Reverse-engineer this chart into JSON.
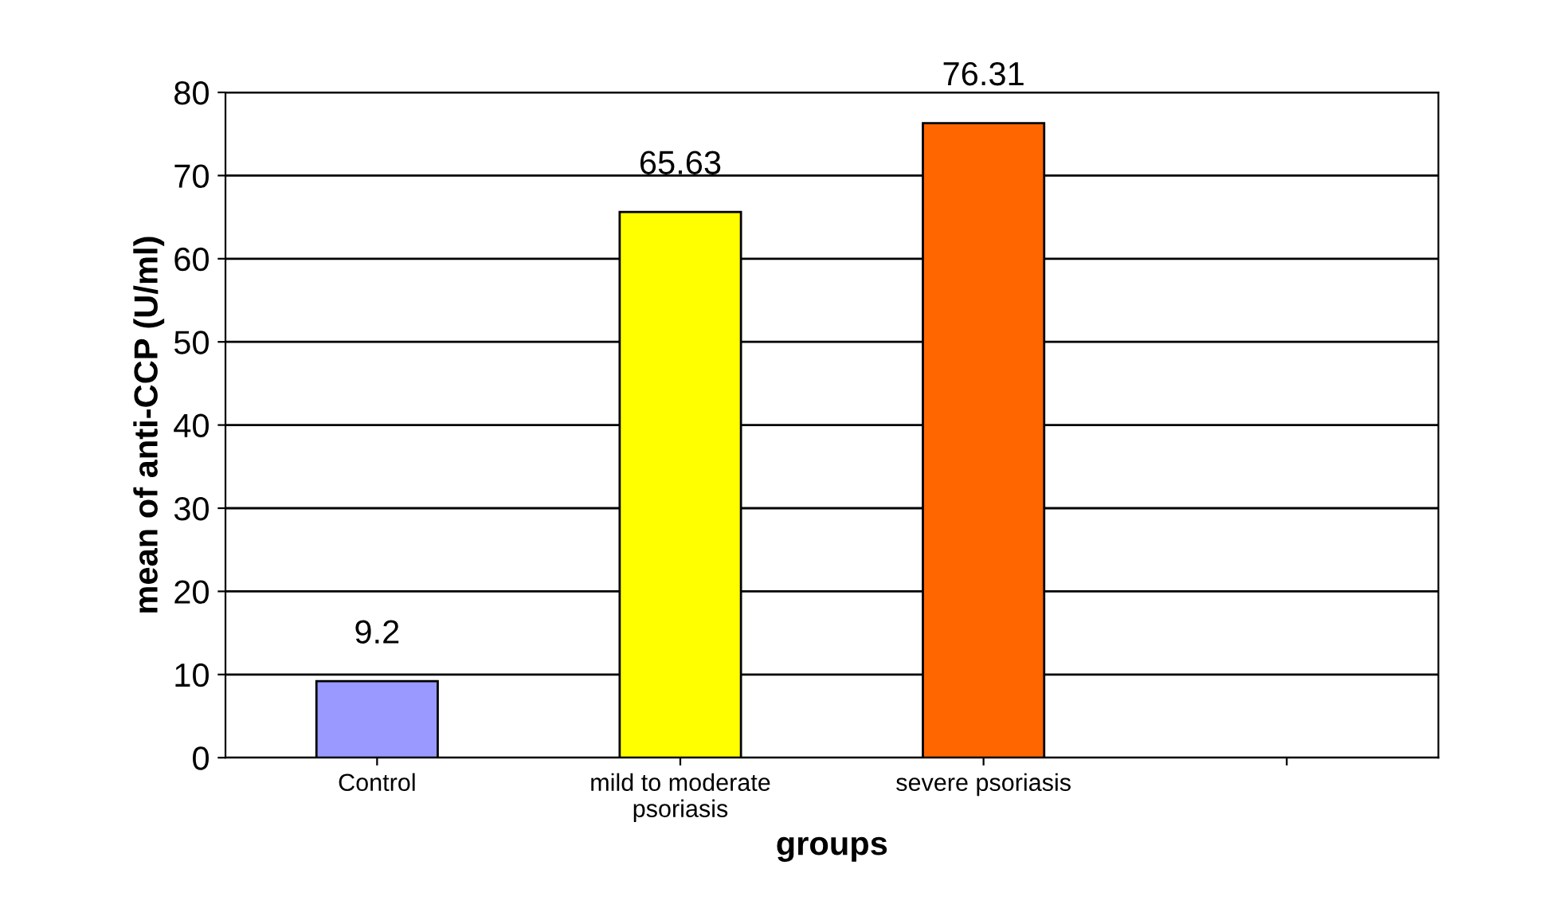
{
  "chart_data": {
    "type": "bar",
    "xlabel": "groups",
    "ylabel": "mean of anti-CCP (U/ml)",
    "categories": [
      "Control",
      "mild to moderate\npsoriasis",
      "severe psoriasis",
      null
    ],
    "values": [
      9.2,
      65.63,
      76.31,
      null
    ],
    "colors": [
      "#9999ff",
      "#ffff00",
      "#ff6600",
      "#ffffff"
    ],
    "ylim": [
      0,
      80
    ],
    "yticks": [
      0,
      10,
      20,
      30,
      40,
      50,
      60,
      70,
      80
    ],
    "grid": "y",
    "data_labels": true
  }
}
